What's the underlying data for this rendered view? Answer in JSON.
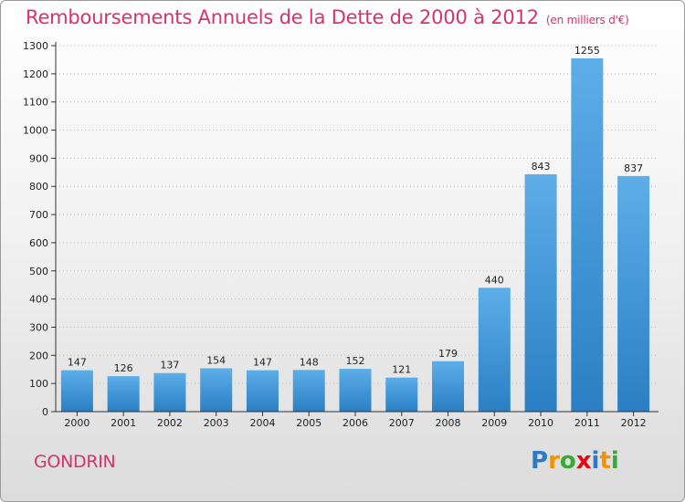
{
  "header": {
    "title": "Remboursements Annuels de la Dette de 2000 à 2012",
    "unit": "(en milliers d'€)"
  },
  "footer": {
    "commune": "GONDRIN",
    "logo_letters": [
      "P",
      "r",
      "o",
      "x",
      "i",
      "t",
      "i"
    ],
    "logo_colors": [
      "#2b7bc8",
      "#f39200",
      "#3aa935",
      "#e30613",
      "#2b7bc8",
      "#f39200",
      "#3aa935"
    ]
  },
  "colors": {
    "bar_top": "#5daee8",
    "bar_bottom": "#2a7fc4",
    "axis": "#333333",
    "grid": "#bbbbbb"
  },
  "chart_data": {
    "type": "bar",
    "title": "Remboursements Annuels de la Dette de 2000 à 2012",
    "subtitle": "(en milliers d'€)",
    "xlabel": "",
    "ylabel": "",
    "categories": [
      "2000",
      "2001",
      "2002",
      "2003",
      "2004",
      "2005",
      "2006",
      "2007",
      "2008",
      "2009",
      "2010",
      "2011",
      "2012"
    ],
    "values": [
      147,
      126,
      137,
      154,
      147,
      148,
      152,
      121,
      179,
      440,
      843,
      1255,
      837
    ],
    "ylim": [
      0,
      1300
    ],
    "yticks": [
      0,
      100,
      200,
      300,
      400,
      500,
      600,
      700,
      800,
      900,
      1000,
      1100,
      1200,
      1300
    ],
    "grid": true,
    "legend": "none"
  }
}
